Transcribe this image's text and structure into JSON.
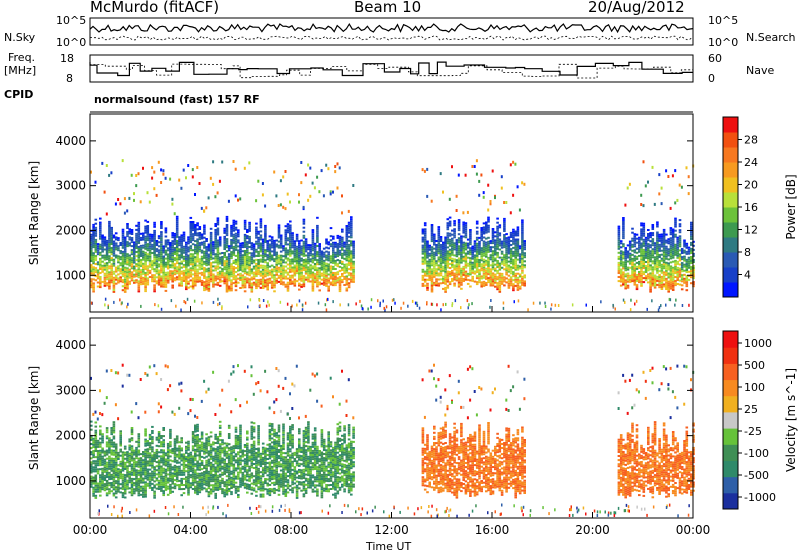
{
  "header": {
    "title": "McMurdo (fitACF)",
    "beam": "Beam 10",
    "date": "20/Aug/2012"
  },
  "status_panels": {
    "noise": {
      "left_label": "N.Sky",
      "right_label": "N.Search",
      "left_ticks": [
        "10^5",
        "10^0"
      ],
      "right_ticks": [
        "10^5",
        "10^0"
      ]
    },
    "freq": {
      "left_label_1": "Freq.",
      "left_label_2": "[MHz]",
      "right_label": "Nave",
      "left_ticks": [
        18,
        8
      ],
      "right_ticks": [
        60,
        0
      ]
    },
    "cpid": {
      "label": "CPID",
      "value": "normalsound (fast) 157 RF"
    }
  },
  "chart_data": [
    {
      "type": "heatmap",
      "name": "power",
      "xlabel": "Time UT",
      "ylabel": "Slant Range [km]",
      "xlim": [
        0,
        24
      ],
      "ylim": [
        180,
        4600
      ],
      "ytick_labels": [
        "1000",
        "2000",
        "3000",
        "4000"
      ],
      "colorbar": {
        "label": "Power [dB]",
        "ticks": [
          "4",
          "8",
          "12",
          "16",
          "20",
          "24",
          "28"
        ],
        "range": [
          0,
          32
        ],
        "colors": [
          "#0016ff",
          "#1740c8",
          "#2a5ab4",
          "#2f7a82",
          "#3d9a50",
          "#6cc23a",
          "#b8e03a",
          "#f0c020",
          "#f79a20",
          "#f77820",
          "#f25010",
          "#ee1010"
        ]
      },
      "scatter_echo_intervals_ut": [
        [
          0.0,
          10.5
        ],
        [
          13.2,
          17.3
        ],
        [
          21.0,
          24.0
        ]
      ],
      "echo_band_km": [
        600,
        2300
      ]
    },
    {
      "type": "heatmap",
      "name": "velocity",
      "xlabel": "Time UT",
      "ylabel": "Slant Range [km]",
      "xlim": [
        0,
        24
      ],
      "ylim": [
        180,
        4600
      ],
      "ytick_labels": [
        "1000",
        "2000",
        "3000",
        "4000"
      ],
      "xtick_labels": [
        "00:00",
        "04:00",
        "08:00",
        "12:00",
        "16:00",
        "20:00",
        "00:00"
      ],
      "colorbar": {
        "label": "Velocity [m s^-1]",
        "ticks": [
          "1000",
          "500",
          "100",
          "25",
          "-25",
          "-100",
          "-500",
          "-1000"
        ],
        "colors": [
          "#1b2f9e",
          "#2e5fa8",
          "#2f8a6a",
          "#3f8f55",
          "#66c23a",
          "#c8c8c8",
          "#f0b020",
          "#f78a20",
          "#f76020",
          "#f03010",
          "#ee1010"
        ]
      },
      "scatter_echo_intervals_ut": [
        [
          0.0,
          10.5
        ],
        [
          13.2,
          17.3
        ],
        [
          21.0,
          24.0
        ]
      ],
      "echo_band_km": [
        600,
        2300
      ]
    }
  ]
}
